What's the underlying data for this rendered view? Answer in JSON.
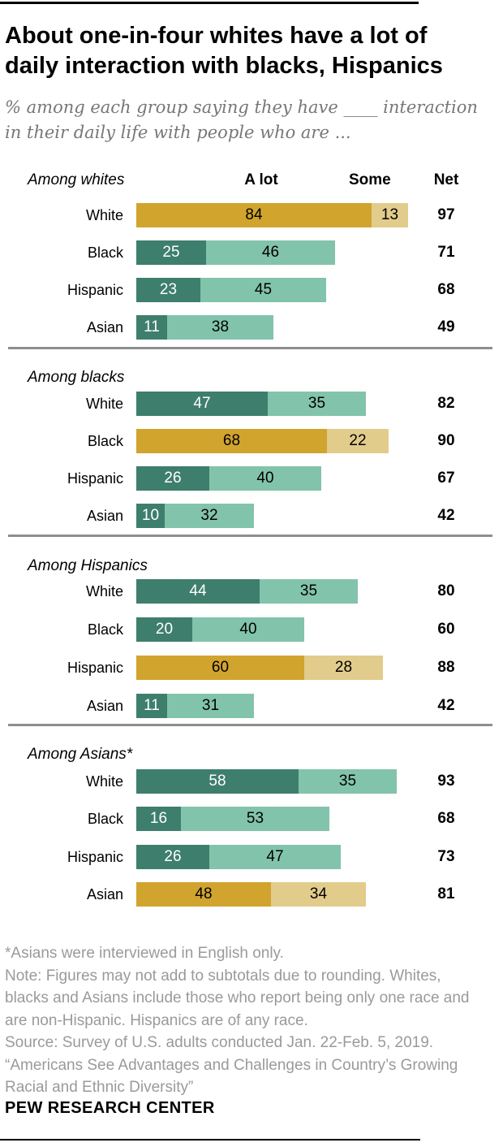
{
  "header": {
    "title_lines": [
      "About one-in-four whites have a lot of",
      "daily interaction with blacks, Hispanics"
    ],
    "subtitle_lines": [
      "% among each group saying they have ____ interaction",
      "in their daily life with people who are ..."
    ]
  },
  "colors": {
    "gold_dark": "#D1A42E",
    "gold_light": "#E2CC8C",
    "teal_dark": "#3E7E6C",
    "teal_light": "#82C3AB",
    "divider_gray": "#8E8E8E",
    "black_rule": "#000000"
  },
  "chart_data": {
    "type": "bar",
    "orientation": "horizontal-stacked",
    "legend": {
      "a_lot_label": "A lot",
      "some_label": "Some",
      "net_label": "Net"
    },
    "axis": {
      "unit": "percent",
      "scale_max": 100
    },
    "sections": [
      {
        "label": "Among whites",
        "rows": [
          {
            "label": "White",
            "a_lot": 84,
            "some": 13,
            "net": 97,
            "gold": true
          },
          {
            "label": "Black",
            "a_lot": 25,
            "some": 46,
            "net": 71,
            "gold": false
          },
          {
            "label": "Hispanic",
            "a_lot": 23,
            "some": 45,
            "net": 68,
            "gold": false
          },
          {
            "label": "Asian",
            "a_lot": 11,
            "some": 38,
            "net": 49,
            "gold": false
          }
        ]
      },
      {
        "label": "Among blacks",
        "rows": [
          {
            "label": "White",
            "a_lot": 47,
            "some": 35,
            "net": 82,
            "gold": false
          },
          {
            "label": "Black",
            "a_lot": 68,
            "some": 22,
            "net": 90,
            "gold": true
          },
          {
            "label": "Hispanic",
            "a_lot": 26,
            "some": 40,
            "net": 67,
            "gold": false
          },
          {
            "label": "Asian",
            "a_lot": 10,
            "some": 32,
            "net": 42,
            "gold": false
          }
        ]
      },
      {
        "label": "Among Hispanics",
        "rows": [
          {
            "label": "White",
            "a_lot": 44,
            "some": 35,
            "net": 80,
            "gold": false
          },
          {
            "label": "Black",
            "a_lot": 20,
            "some": 40,
            "net": 60,
            "gold": false
          },
          {
            "label": "Hispanic",
            "a_lot": 60,
            "some": 28,
            "net": 88,
            "gold": true
          },
          {
            "label": "Asian",
            "a_lot": 11,
            "some": 31,
            "net": 42,
            "gold": false
          }
        ]
      },
      {
        "label": "Among Asians*",
        "rows": [
          {
            "label": "White",
            "a_lot": 58,
            "some": 35,
            "net": 93,
            "gold": false
          },
          {
            "label": "Black",
            "a_lot": 16,
            "some": 53,
            "net": 68,
            "gold": false
          },
          {
            "label": "Hispanic",
            "a_lot": 26,
            "some": 47,
            "net": 73,
            "gold": false
          },
          {
            "label": "Asian",
            "a_lot": 48,
            "some": 34,
            "net": 81,
            "gold": true
          }
        ]
      }
    ]
  },
  "footer": {
    "lines": [
      "*Asians were interviewed in English only.",
      "Note: Figures may not add to subtotals due to rounding. Whites,",
      "blacks and Asians include those who report being only one race and",
      "are non-Hispanic. Hispanics are of any race.",
      "Source: Survey of U.S. adults conducted Jan. 22-Feb. 5, 2019.",
      "“Americans See Advantages and Challenges in Country’s Growing",
      "Racial and Ethnic Diversity”"
    ],
    "brand": "PEW RESEARCH CENTER"
  }
}
